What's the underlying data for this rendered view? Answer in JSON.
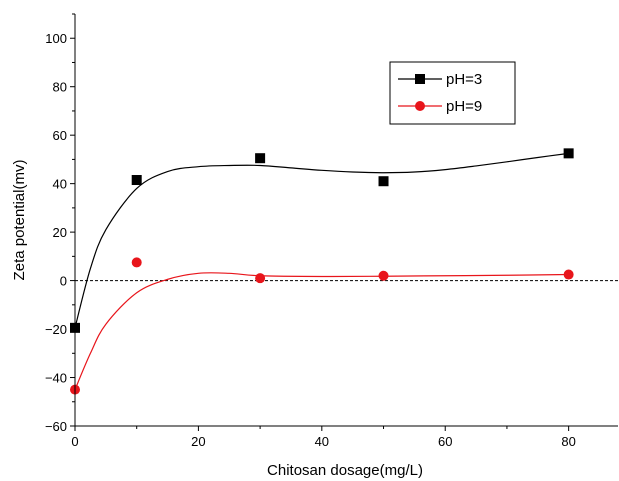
{
  "chart_data": {
    "type": "scatter",
    "xlabel": "Chitosan dosage(mg/L)",
    "ylabel": "Zeta potential(mv)",
    "xlim": [
      0,
      88
    ],
    "ylim": [
      -60,
      110
    ],
    "x_ticks": [
      0,
      20,
      40,
      60,
      80
    ],
    "x_tick_labels": [
      "0",
      "20",
      "40",
      "60",
      "80"
    ],
    "y_ticks": [
      -60,
      -40,
      -20,
      0,
      20,
      40,
      60,
      80,
      100
    ],
    "y_tick_labels": [
      "−60",
      "−40",
      "−20",
      "0",
      "20",
      "40",
      "60",
      "80",
      "100"
    ],
    "reference_line": {
      "y": 0,
      "style": "dashed"
    },
    "legend_position": "top-right",
    "series": [
      {
        "name": "pH=3",
        "color": "#000000",
        "marker": "square",
        "points": [
          [
            0,
            -19.5
          ],
          [
            10,
            41.5
          ],
          [
            30,
            50.5
          ],
          [
            50,
            41
          ],
          [
            80,
            52.5
          ]
        ],
        "fit_curve": [
          [
            0,
            -19.5
          ],
          [
            2.5,
            5
          ],
          [
            5,
            21
          ],
          [
            10,
            38
          ],
          [
            15,
            45
          ],
          [
            20,
            47
          ],
          [
            25,
            47.5
          ],
          [
            30,
            47.5
          ],
          [
            35,
            46.5
          ],
          [
            40,
            45.5
          ],
          [
            45,
            44.8
          ],
          [
            50,
            44.5
          ],
          [
            55,
            44.8
          ],
          [
            60,
            45.8
          ],
          [
            65,
            47.3
          ],
          [
            70,
            49
          ],
          [
            75,
            50.8
          ],
          [
            80,
            52.5
          ]
        ]
      },
      {
        "name": "pH=9",
        "color": "#e8151b",
        "marker": "circle",
        "points": [
          [
            0,
            -45
          ],
          [
            10,
            7.5
          ],
          [
            30,
            1
          ],
          [
            50,
            2
          ],
          [
            80,
            2.5
          ]
        ],
        "fit_curve": [
          [
            0,
            -45
          ],
          [
            2.5,
            -30
          ],
          [
            5,
            -18
          ],
          [
            10,
            -5
          ],
          [
            15,
            0.5
          ],
          [
            20,
            3
          ],
          [
            25,
            3
          ],
          [
            30,
            2
          ],
          [
            40,
            1.7
          ],
          [
            50,
            1.8
          ],
          [
            60,
            2
          ],
          [
            70,
            2.2
          ],
          [
            80,
            2.5
          ]
        ]
      }
    ]
  }
}
